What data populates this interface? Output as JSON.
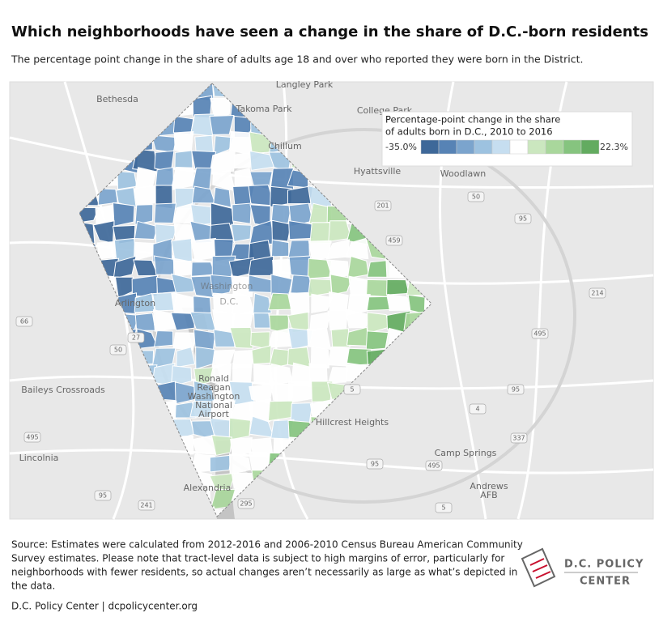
{
  "header": {
    "title": "Which neighborhoods have seen a change in the share of D.C.-born residents",
    "subtitle": "The percentage point change in the share of adults age 18 and over who reported they were born in the District."
  },
  "legend": {
    "title_line1": "Percentage-point change in the share",
    "title_line2": "of adults born in D.C., 2010 to 2016",
    "min_label": "-35.0%",
    "max_label": "22.3%",
    "colors": [
      "#3e6899",
      "#5783b5",
      "#7ba4cd",
      "#9dc2e0",
      "#c6def0",
      "#ffffff",
      "#cbe7bf",
      "#a9d79c",
      "#86c47f",
      "#63ab60"
    ]
  },
  "map": {
    "places": [
      "Langley Park",
      "Bethesda",
      "Takoma Park",
      "College Park",
      "Chillum",
      "Hyattsville",
      "Woodlawn",
      "Washington",
      "D.C.",
      "Arlington",
      "Baileys Crossroads",
      "Ronald",
      "Reagan",
      "Washington",
      "National",
      "Airport",
      "Hillcrest Heights",
      "Lincolnia",
      "Camp Springs",
      "Andrews",
      "AFB",
      "Alexandria"
    ],
    "shields": [
      "201",
      "50",
      "95",
      "459",
      "214",
      "495",
      "66",
      "27",
      "50",
      "5",
      "4",
      "95",
      "337",
      "495",
      "95",
      "495",
      "295",
      "241",
      "95",
      "5"
    ]
  },
  "footer": {
    "source": [
      "Source: Estimates were calculated from 2012-2016 and 2006-2010 Census Bureau American Community",
      "Survey estimates. Please note that tract-level data is subject to high margins of error, particularly for",
      "neighborhoods with fewer residents, so actual changes aren’t necessarily as large as what’s depicted in",
      "the data."
    ],
    "credit": "D.C. Policy Center  |  dcpolicycenter.org",
    "logo_line1": "D.C. POLICY",
    "logo_line2": "CENTER"
  }
}
